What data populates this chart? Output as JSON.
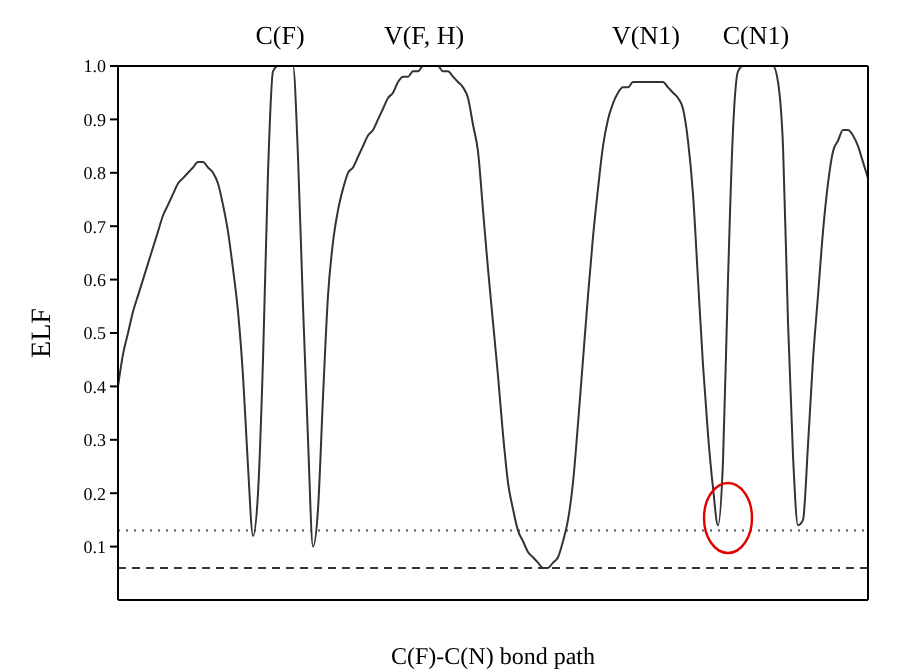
{
  "chart_data": {
    "type": "line",
    "xlabel": "C(F)-C(N) bond path",
    "ylabel": "ELF",
    "annotations": [
      "C(F)",
      "V(F, H)",
      "V(N1)",
      "C(N1)"
    ],
    "categories": [
      null,
      null,
      null,
      null,
      null,
      null,
      null,
      null,
      null,
      null,
      null,
      null,
      null,
      null,
      null,
      null,
      null,
      null,
      null,
      null,
      null,
      null,
      null,
      null,
      null,
      null,
      null,
      null,
      null,
      null,
      null,
      null,
      null,
      null,
      null,
      null,
      null,
      null,
      null,
      null,
      null,
      null,
      null,
      null,
      null,
      null,
      null,
      null,
      null,
      null,
      null,
      null,
      null,
      null,
      null,
      null,
      null,
      null,
      null,
      null,
      null,
      null,
      null,
      null,
      null,
      null,
      null,
      null,
      null,
      null,
      null,
      null,
      null,
      null,
      null,
      null,
      null,
      null,
      null,
      null,
      null,
      null,
      null,
      null,
      null,
      null,
      null,
      null,
      null,
      null,
      null,
      null,
      null,
      null,
      null,
      null,
      null,
      null,
      null,
      null,
      null,
      null,
      null,
      null,
      null,
      null,
      null,
      null,
      null,
      null,
      null,
      null,
      null,
      null,
      null,
      null,
      null,
      null,
      null,
      null,
      null,
      null,
      null,
      null,
      null,
      null,
      null,
      null,
      null,
      null,
      null,
      null,
      null,
      null,
      null,
      null,
      null,
      null,
      null,
      null,
      null,
      null,
      null,
      null,
      null,
      null,
      null,
      null,
      null,
      null,
      null
    ],
    "series": [
      {
        "color": "#333333",
        "values": [
          0.4,
          0.46,
          0.5,
          0.54,
          0.57,
          0.6,
          0.63,
          0.66,
          0.69,
          0.72,
          0.74,
          0.76,
          0.78,
          0.79,
          0.8,
          0.81,
          0.82,
          0.82,
          0.81,
          0.8,
          0.78,
          0.74,
          0.69,
          0.62,
          0.54,
          0.42,
          0.25,
          0.12,
          0.2,
          0.45,
          0.8,
          0.99,
          1.0,
          1.0,
          1.0,
          1.0,
          0.83,
          0.55,
          0.3,
          0.1,
          0.17,
          0.38,
          0.57,
          0.67,
          0.73,
          0.77,
          0.8,
          0.81,
          0.83,
          0.85,
          0.87,
          0.88,
          0.9,
          0.92,
          0.94,
          0.95,
          0.97,
          0.98,
          0.98,
          0.99,
          0.99,
          1.0,
          1.0,
          1.0,
          1.0,
          0.99,
          0.99,
          0.98,
          0.97,
          0.96,
          0.94,
          0.89,
          0.84,
          0.73,
          0.62,
          0.52,
          0.42,
          0.31,
          0.22,
          0.17,
          0.13,
          0.11,
          0.09,
          0.08,
          0.07,
          0.06,
          0.06,
          0.07,
          0.08,
          0.11,
          0.15,
          0.22,
          0.33,
          0.45,
          0.57,
          0.68,
          0.77,
          0.85,
          0.9,
          0.93,
          0.95,
          0.96,
          0.96,
          0.97,
          0.97,
          0.97,
          0.97,
          0.97,
          0.97,
          0.97,
          0.96,
          0.95,
          0.94,
          0.92,
          0.86,
          0.76,
          0.6,
          0.44,
          0.31,
          0.21,
          0.14,
          0.26,
          0.6,
          0.88,
          0.99,
          1.0,
          1.0,
          1.0,
          1.0,
          1.0,
          1.0,
          1.0,
          0.97,
          0.85,
          0.52,
          0.27,
          0.14,
          0.15,
          0.29,
          0.45,
          0.57,
          0.69,
          0.78,
          0.84,
          0.86,
          0.88,
          0.88,
          0.87,
          0.85,
          0.82,
          0.79
        ]
      }
    ],
    "ylim": [
      0,
      1
    ],
    "yticks": [
      0.1,
      0.2,
      0.3,
      0.4,
      0.5,
      0.6,
      0.7,
      0.8,
      0.9,
      {
        "value": 1,
        "label": "1.0"
      }
    ],
    "ref_lines": [
      {
        "axis": "y",
        "value": 0.13,
        "line_style": "dotted",
        "color": "#555555"
      },
      {
        "axis": "y",
        "value": 0.06,
        "line_style": "dashed",
        "color": "#333333"
      }
    ],
    "marker": "none",
    "line_style": "solid"
  }
}
